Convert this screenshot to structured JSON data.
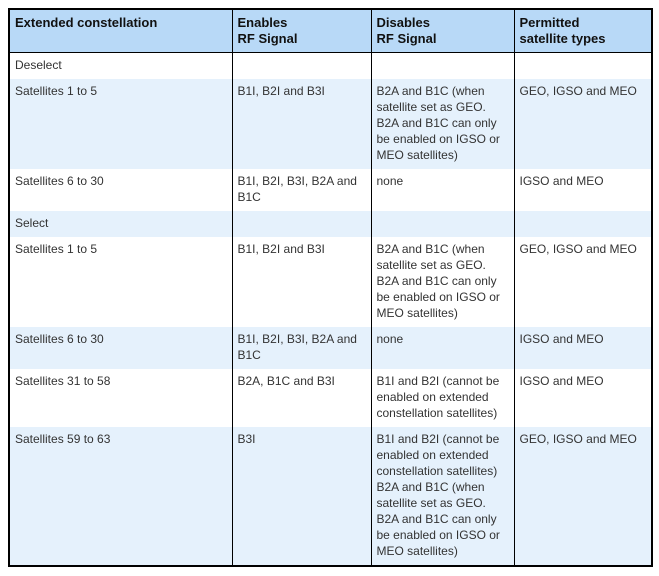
{
  "table": {
    "columns": [
      {
        "label": "Extended constellation"
      },
      {
        "label": "Enables\nRF Signal"
      },
      {
        "label": "Disables\nRF Signal"
      },
      {
        "label": "Permitted\nsatellite types"
      }
    ],
    "rows": [
      {
        "kind": "section",
        "bg": "white",
        "cells": [
          "Deselect",
          "",
          "",
          ""
        ]
      },
      {
        "kind": "data",
        "bg": "blue",
        "cells": [
          "Satellites 1 to 5",
          "B1I, B2I and B3I",
          "B2A and B1C (when\nsatellite set as GEO.\nB2A and B1C can only\nbe enabled on IGSO or\nMEO satellites)",
          "GEO, IGSO and MEO"
        ]
      },
      {
        "kind": "data",
        "bg": "white",
        "cells": [
          "Satellites 6 to 30",
          "B1I, B2I, B3I, B2A and\nB1C",
          "none",
          "IGSO and MEO"
        ]
      },
      {
        "kind": "section",
        "bg": "blue",
        "cells": [
          "Select",
          "",
          "",
          ""
        ]
      },
      {
        "kind": "data",
        "bg": "white",
        "cells": [
          "Satellites 1 to 5",
          "B1I, B2I and B3I",
          "B2A and B1C (when\nsatellite set as GEO.\nB2A and B1C can only\nbe enabled on IGSO or\nMEO satellites)",
          "GEO, IGSO and MEO"
        ]
      },
      {
        "kind": "data",
        "bg": "blue",
        "cells": [
          "Satellites 6 to 30",
          "B1I, B2I, B3I, B2A and\nB1C",
          "none",
          "IGSO and MEO"
        ]
      },
      {
        "kind": "data",
        "bg": "white",
        "cells": [
          "Satellites 31 to 58",
          "B2A, B1C and B3I",
          "B1I and B2I (cannot be\nenabled on extended\nconstellation satellites)",
          "IGSO and MEO"
        ]
      },
      {
        "kind": "data",
        "bg": "blue",
        "cells": [
          "Satellites 59 to 63",
          "B3I",
          "B1I and B2I (cannot be\nenabled on extended\nconstellation satellites)\nB2A and B1C (when\nsatellite set as GEO.\nB2A and B1C can only\nbe enabled on IGSO or\nMEO satellites)",
          "GEO, IGSO and MEO"
        ]
      }
    ]
  },
  "colors": {
    "header_bg": "#b8d9f7",
    "row_alt_bg": "#e5f1fc",
    "border": "#000000",
    "text": "#333333",
    "header_text": "#111111"
  }
}
